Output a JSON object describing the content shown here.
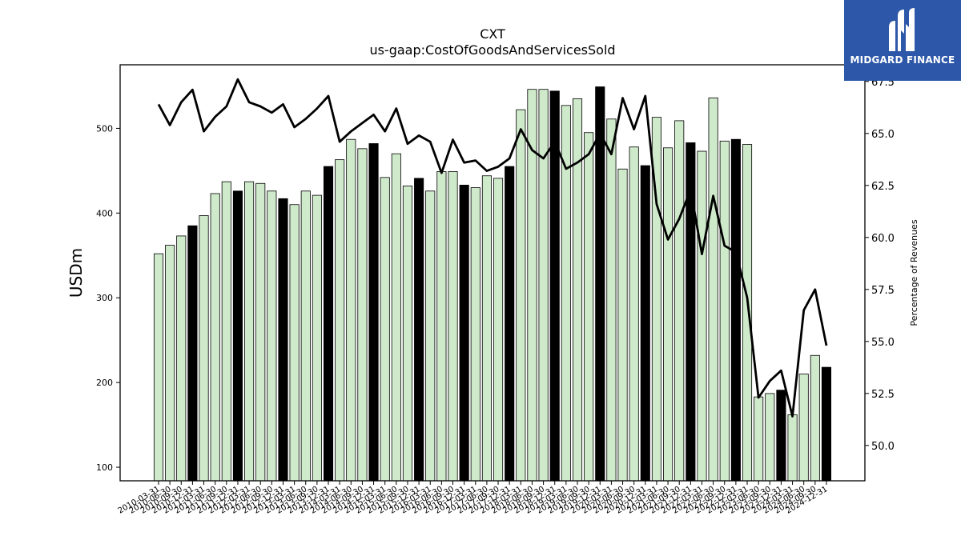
{
  "chart_data": {
    "type": "bar",
    "title": "CXT",
    "subtitle": "us-gaap:CostOfGoodsAndServicesSold",
    "ylabel": "USDm",
    "ylabel_right": "Percentage of Revenues",
    "ylim": [
      84,
      575
    ],
    "ylim_right": [
      48.3,
      68.3
    ],
    "yticks": [
      100,
      200,
      300,
      400,
      500
    ],
    "yticks_right": [
      50.0,
      52.5,
      55.0,
      57.5,
      60.0,
      62.5,
      65.0,
      67.5
    ],
    "categories": [
      "2010-03-31",
      "2010-06-30",
      "2010-09-30",
      "2010-12-31",
      "2011-03-31",
      "2011-06-30",
      "2011-09-30",
      "2011-12-31",
      "2012-03-31",
      "2012-06-30",
      "2012-09-30",
      "2012-12-31",
      "2013-03-31",
      "2013-06-30",
      "2013-09-30",
      "2013-12-31",
      "2014-03-31",
      "2014-06-30",
      "2014-09-30",
      "2014-12-31",
      "2015-03-31",
      "2015-06-30",
      "2015-09-30",
      "2015-12-31",
      "2016-03-31",
      "2016-06-30",
      "2016-09-30",
      "2016-12-31",
      "2017-03-31",
      "2017-06-30",
      "2017-09-30",
      "2017-12-31",
      "2018-03-31",
      "2018-06-30",
      "2018-09-30",
      "2018-12-31",
      "2019-03-31",
      "2019-06-30",
      "2019-09-30",
      "2019-12-31",
      "2020-03-31",
      "2020-06-30",
      "2020-09-30",
      "2020-12-31",
      "2021-03-31",
      "2021-06-30",
      "2021-09-30",
      "2021-12-31",
      "2022-03-31",
      "2022-06-30",
      "2022-09-30",
      "2022-12-31",
      "2023-03-31",
      "2023-06-30",
      "2023-09-30",
      "2023-12-31",
      "2024-03-31",
      "2024-06-30",
      "2024-09-30",
      "2024-12-31"
    ],
    "series": [
      {
        "values": [
          352,
          362,
          373,
          385,
          397,
          423,
          437,
          426,
          437,
          435,
          426,
          417,
          410,
          426,
          421,
          455,
          463,
          487,
          476,
          482,
          442,
          470,
          432,
          441,
          426,
          449,
          449,
          433,
          430,
          444,
          441,
          455,
          522,
          546,
          546,
          544,
          527,
          535,
          495,
          549,
          511,
          452,
          478,
          456,
          513,
          477,
          509,
          483,
          473,
          536,
          485,
          487,
          481,
          183,
          187,
          191,
          162,
          210,
          232,
          218
        ],
        "quarter_types": [
          "Q1",
          "Q2",
          "Q3",
          "FY",
          "Q1",
          "Q2",
          "Q3",
          "FY",
          "Q1",
          "Q2",
          "Q3",
          "FY",
          "Q1",
          "Q2",
          "Q3",
          "FY",
          "Q1",
          "Q2",
          "Q3",
          "FY",
          "Q1",
          "Q2",
          "Q3",
          "FY",
          "Q1",
          "Q2",
          "Q3",
          "FY",
          "Q1",
          "Q2",
          "Q3",
          "FY",
          "Q1",
          "Q2",
          "Q3",
          "FY",
          "Q1",
          "Q2",
          "Q3",
          "FY",
          "Q1",
          "Q2",
          "Q3",
          "FY",
          "Q1",
          "Q2",
          "Q3",
          "FY",
          "Q1",
          "Q2",
          "Q3",
          "FY",
          "Q1",
          "Q2",
          "Q3",
          "FY",
          "Q1",
          "Q2",
          "Q3",
          "FY"
        ]
      },
      {
        "type": "line",
        "axis": "right",
        "values": [
          66.4,
          65.4,
          66.5,
          67.1,
          65.1,
          65.8,
          66.3,
          67.6,
          66.5,
          66.3,
          66.0,
          66.4,
          65.3,
          65.7,
          66.2,
          66.8,
          64.6,
          65.1,
          65.5,
          65.9,
          65.1,
          66.2,
          64.5,
          64.9,
          64.6,
          63.1,
          64.7,
          63.6,
          63.7,
          63.2,
          63.4,
          63.8,
          65.2,
          64.2,
          63.8,
          64.6,
          63.3,
          63.6,
          64.0,
          65.0,
          64.0,
          66.7,
          65.2,
          66.8,
          61.6,
          59.9,
          60.9,
          62.3,
          59.2,
          62.0,
          59.6,
          59.3,
          57.1,
          52.3,
          53.1,
          53.6,
          51.4,
          56.5,
          57.5,
          54.8
        ]
      }
    ],
    "colors": {
      "bar_fill": "#cfeacb",
      "bar_fill_fy": "#000000",
      "bar_edge": "#000000",
      "line": "#000000"
    }
  },
  "logo": {
    "text": "MIDGARD FINANCE",
    "icon": "midgard-logo-icon",
    "background": "#2d57a8"
  }
}
